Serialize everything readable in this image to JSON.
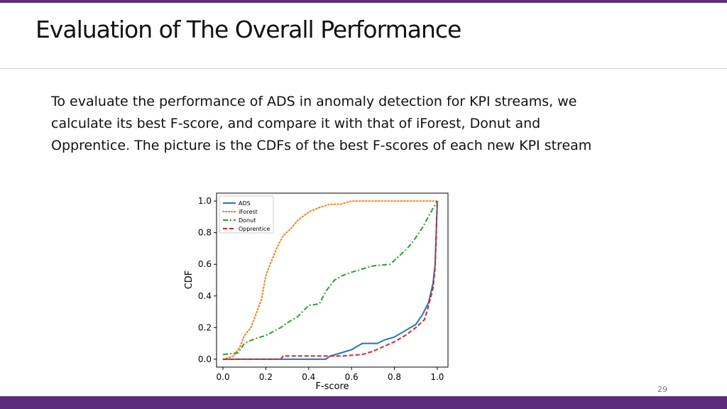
{
  "slide": {
    "title": "Evaluation of The Overall Performance",
    "body": "To evaluate the performance of ADS in anomaly detection for KPI streams, we calculate its best F-score, and compare it with that of iForest, Donut and Opprentice. The picture is the CDFs of the best F-scores of each new KPI stream",
    "page_number": "29",
    "accent_color": "#5b2d7a"
  },
  "chart_data": {
    "type": "line",
    "xlabel": "F-score",
    "ylabel": "CDF",
    "xlim": [
      -0.03,
      1.05
    ],
    "ylim": [
      -0.05,
      1.05
    ],
    "xticks": [
      "0.0",
      "0.2",
      "0.4",
      "0.6",
      "0.8",
      "1.0"
    ],
    "yticks": [
      "0.0",
      "0.2",
      "0.4",
      "0.6",
      "0.8",
      "1.0"
    ],
    "grid": false,
    "legend": "top-left",
    "series": [
      {
        "name": "ADS",
        "color": "#1f77b4",
        "style": "solid",
        "points": [
          [
            0,
            0
          ],
          [
            0.48,
            0
          ],
          [
            0.5,
            0.02
          ],
          [
            0.55,
            0.04
          ],
          [
            0.6,
            0.06
          ],
          [
            0.65,
            0.1
          ],
          [
            0.72,
            0.1
          ],
          [
            0.75,
            0.12
          ],
          [
            0.8,
            0.14
          ],
          [
            0.85,
            0.18
          ],
          [
            0.9,
            0.22
          ],
          [
            0.93,
            0.28
          ],
          [
            0.96,
            0.36
          ],
          [
            0.98,
            0.48
          ],
          [
            0.99,
            0.6
          ],
          [
            1.0,
            1.0
          ]
        ]
      },
      {
        "name": "iForest",
        "color": "#ff7f0e",
        "style": "dotted",
        "points": [
          [
            0,
            0
          ],
          [
            0.05,
            0.02
          ],
          [
            0.08,
            0.08
          ],
          [
            0.1,
            0.15
          ],
          [
            0.13,
            0.2
          ],
          [
            0.15,
            0.27
          ],
          [
            0.18,
            0.38
          ],
          [
            0.2,
            0.53
          ],
          [
            0.22,
            0.6
          ],
          [
            0.25,
            0.7
          ],
          [
            0.28,
            0.78
          ],
          [
            0.32,
            0.83
          ],
          [
            0.35,
            0.88
          ],
          [
            0.4,
            0.93
          ],
          [
            0.45,
            0.96
          ],
          [
            0.5,
            0.98
          ],
          [
            0.55,
            0.98
          ],
          [
            0.6,
            1.0
          ],
          [
            1.0,
            1.0
          ]
        ]
      },
      {
        "name": "Donut",
        "color": "#2ca02c",
        "style": "dashdot",
        "points": [
          [
            0,
            0.03
          ],
          [
            0.07,
            0.04
          ],
          [
            0.1,
            0.1
          ],
          [
            0.15,
            0.13
          ],
          [
            0.2,
            0.15
          ],
          [
            0.27,
            0.2
          ],
          [
            0.3,
            0.23
          ],
          [
            0.35,
            0.27
          ],
          [
            0.4,
            0.34
          ],
          [
            0.45,
            0.35
          ],
          [
            0.48,
            0.43
          ],
          [
            0.52,
            0.5
          ],
          [
            0.56,
            0.53
          ],
          [
            0.6,
            0.55
          ],
          [
            0.65,
            0.57
          ],
          [
            0.7,
            0.59
          ],
          [
            0.78,
            0.6
          ],
          [
            0.82,
            0.65
          ],
          [
            0.86,
            0.7
          ],
          [
            0.89,
            0.75
          ],
          [
            0.93,
            0.83
          ],
          [
            0.97,
            0.93
          ],
          [
            1.0,
            1.0
          ]
        ]
      },
      {
        "name": "Opprentice",
        "color": "#d62728",
        "style": "dashed",
        "points": [
          [
            0,
            0
          ],
          [
            0.27,
            0
          ],
          [
            0.28,
            0.02
          ],
          [
            0.5,
            0.02
          ],
          [
            0.55,
            0.02
          ],
          [
            0.65,
            0.03
          ],
          [
            0.7,
            0.05
          ],
          [
            0.75,
            0.08
          ],
          [
            0.8,
            0.11
          ],
          [
            0.85,
            0.15
          ],
          [
            0.9,
            0.2
          ],
          [
            0.94,
            0.25
          ],
          [
            0.96,
            0.34
          ],
          [
            0.98,
            0.45
          ],
          [
            0.99,
            0.58
          ],
          [
            1.0,
            1.0
          ]
        ]
      }
    ]
  }
}
